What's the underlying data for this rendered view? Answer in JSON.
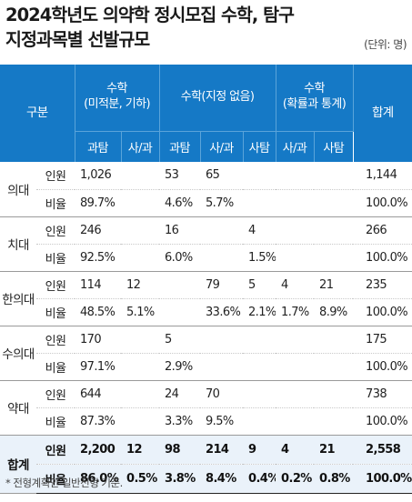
{
  "title_line1": "2024학년도 의약학 정시모집 수학, 탐구",
  "title_line2": "지정과목별 선발규모",
  "unit": "(단위: 명)",
  "header": {
    "corner": "구분",
    "group1_line1": "수학",
    "group1_line2": "(미적분, 기하)",
    "group2": "수학(지정 없음)",
    "group3_line1": "수학",
    "group3_line2": "(확률과 통계)",
    "total": "합계",
    "sub": [
      "과탐",
      "사/과",
      "과탐",
      "사/과",
      "사탐",
      "사/과",
      "사탐"
    ]
  },
  "rows": [
    {
      "label": "의대",
      "r1": [
        "인원",
        "1,026",
        "",
        "53",
        "65",
        "",
        "",
        "",
        "1,144"
      ],
      "r2": [
        "비율",
        "89.7%",
        "",
        "4.6%",
        "5.7%",
        "",
        "",
        "",
        "100.0%"
      ]
    },
    {
      "label": "치대",
      "r1": [
        "인원",
        "246",
        "",
        "16",
        "",
        "4",
        "",
        "",
        "266"
      ],
      "r2": [
        "비율",
        "92.5%",
        "",
        "6.0%",
        "",
        "1.5%",
        "",
        "",
        "100.0%"
      ]
    },
    {
      "label": "한의대",
      "r1": [
        "인원",
        "114",
        "12",
        "",
        "79",
        "5",
        "4",
        "21",
        "235"
      ],
      "r2": [
        "비율",
        "48.5%",
        "5.1%",
        "",
        "33.6%",
        "2.1%",
        "1.7%",
        "8.9%",
        "100.0%"
      ]
    },
    {
      "label": "수의대",
      "r1": [
        "인원",
        "170",
        "",
        "5",
        "",
        "",
        "",
        "",
        "175"
      ],
      "r2": [
        "비율",
        "97.1%",
        "",
        "2.9%",
        "",
        "",
        "",
        "",
        "100.0%"
      ]
    },
    {
      "label": "약대",
      "r1": [
        "인원",
        "644",
        "",
        "24",
        "70",
        "",
        "",
        "",
        "738"
      ],
      "r2": [
        "비율",
        "87.3%",
        "",
        "3.3%",
        "9.5%",
        "",
        "",
        "",
        "100.0%"
      ]
    },
    {
      "label": "합계",
      "r1": [
        "인원",
        "2,200",
        "12",
        "98",
        "214",
        "9",
        "4",
        "21",
        "2,558"
      ],
      "r2": [
        "비율",
        "86.0%",
        "0.5%",
        "3.8%",
        "8.4%",
        "0.4%",
        "0.2%",
        "0.8%",
        "100.0%"
      ]
    }
  ],
  "footnote": "* 전형계획안 일반전형 기준.",
  "colors": {
    "header_bg": "#1579c6",
    "header_text": "#ffffff",
    "total_row_bg": "#eaf2fa"
  }
}
